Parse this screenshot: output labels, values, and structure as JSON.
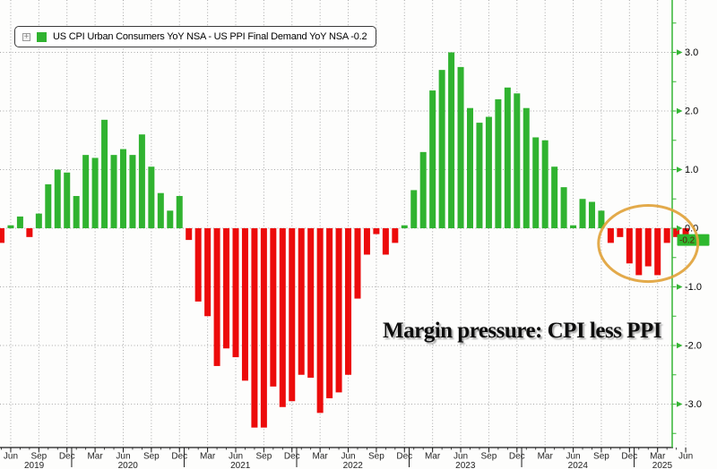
{
  "legend": {
    "series_label": "US CPI Urban Consumers YoY NSA - US PPI Final Demand YoY NSA -0.2",
    "expand_icon_glyph": "+"
  },
  "annotation_text": "Margin pressure: CPI less PPI",
  "colors": {
    "positive_bar": "#30b330",
    "negative_bar": "#ec0b0b",
    "axis_spine_green": "#35b535",
    "axis_line_black": "#1a1a1a",
    "grid": "#a8a8a8",
    "tick_label": "#222222",
    "y_label": "#000000",
    "badge_bg": "#2eb82e",
    "badge_text": "#5b1508",
    "ellipse": "#e1a33b",
    "legend_swatch": "#30b330"
  },
  "y_axis": {
    "ticks": [
      {
        "v": 3,
        "label": "3.0"
      },
      {
        "v": 2,
        "label": "2.0"
      },
      {
        "v": 1,
        "label": "1.0"
      },
      {
        "v": 0,
        "label": "0.0"
      },
      {
        "v": -1,
        "label": "-1.0"
      },
      {
        "v": -2,
        "label": "-2.0"
      },
      {
        "v": -3,
        "label": "-3.0"
      }
    ],
    "minor_from": 3.5,
    "minor_to": -3.5,
    "minor_step": 0.5,
    "last_value": {
      "label": "-0.2",
      "v": -0.2
    }
  },
  "x_axis": {
    "quarter_ticks": [
      {
        "i": 1,
        "label": "Jun"
      },
      {
        "i": 4,
        "label": "Sep"
      },
      {
        "i": 7,
        "label": "Dec"
      },
      {
        "i": 10,
        "label": "Mar"
      },
      {
        "i": 13,
        "label": "Jun"
      },
      {
        "i": 16,
        "label": "Sep"
      },
      {
        "i": 19,
        "label": "Dec"
      },
      {
        "i": 22,
        "label": "Mar"
      },
      {
        "i": 25,
        "label": "Jun"
      },
      {
        "i": 28,
        "label": "Sep"
      },
      {
        "i": 31,
        "label": "Dec"
      },
      {
        "i": 34,
        "label": "Mar"
      },
      {
        "i": 37,
        "label": "Jun"
      },
      {
        "i": 40,
        "label": "Sep"
      },
      {
        "i": 43,
        "label": "Dec"
      },
      {
        "i": 46,
        "label": "Mar"
      },
      {
        "i": 49,
        "label": "Jun"
      },
      {
        "i": 52,
        "label": "Sep"
      },
      {
        "i": 55,
        "label": "Dec"
      },
      {
        "i": 58,
        "label": "Mar"
      },
      {
        "i": 61,
        "label": "Jun"
      },
      {
        "i": 64,
        "label": "Sep"
      },
      {
        "i": 67,
        "label": "Dec"
      },
      {
        "i": 70,
        "label": "Mar"
      },
      {
        "i": 73,
        "label": "Jun"
      }
    ],
    "year_labels": [
      {
        "label": "2019",
        "i": 3.5
      },
      {
        "label": "2020",
        "i": 13.5
      },
      {
        "label": "2021",
        "i": 25.5
      },
      {
        "label": "2022",
        "i": 37.5
      },
      {
        "label": "2023",
        "i": 49.5
      },
      {
        "label": "2024",
        "i": 61.5
      },
      {
        "label": "2025",
        "i": 70.5
      }
    ],
    "year_separators_i": [
      7.5,
      19.5,
      31.5,
      43.5,
      55.5,
      67.5
    ]
  },
  "chart_data": {
    "type": "bar",
    "title": "US CPI Urban Consumers YoY NSA - US PPI Final Demand YoY NSA",
    "units": "percentage points (CPI YoY minus PPI YoY)",
    "start_month": "2019-05",
    "end_month": "2025-06",
    "frequency": "monthly",
    "ylim": [
      -3.7,
      3.9
    ],
    "grid": "dotted",
    "legend_position": "top-left",
    "last_value": -0.2,
    "values": [
      -0.25,
      0.05,
      0.2,
      -0.15,
      0.25,
      0.75,
      1.0,
      0.95,
      0.55,
      1.25,
      1.2,
      1.85,
      1.25,
      1.35,
      1.25,
      1.6,
      1.05,
      0.6,
      0.3,
      0.55,
      -0.2,
      -1.25,
      -1.5,
      -2.35,
      -2.05,
      -2.2,
      -2.6,
      -3.4,
      -3.4,
      -2.7,
      -3.05,
      -2.95,
      -2.5,
      -2.55,
      -3.15,
      -2.9,
      -2.8,
      -2.5,
      -1.2,
      -0.45,
      -0.1,
      -0.45,
      -0.25,
      0.05,
      0.65,
      1.3,
      2.35,
      2.7,
      3.0,
      2.75,
      2.05,
      1.8,
      1.9,
      2.2,
      2.4,
      2.3,
      2.05,
      1.55,
      1.5,
      1.05,
      0.7,
      0.05,
      0.5,
      0.45,
      0.3,
      -0.25,
      -0.15,
      -0.6,
      -0.8,
      -0.65,
      -0.8,
      -0.25,
      -0.15,
      -0.2
    ],
    "highlight_ellipse": {
      "note": "circles the Oct-2024 to Jun-2025 negative bars",
      "center_month_i": 69,
      "center_v": -0.26,
      "rx_months": 5.3,
      "rv": 0.65
    }
  }
}
